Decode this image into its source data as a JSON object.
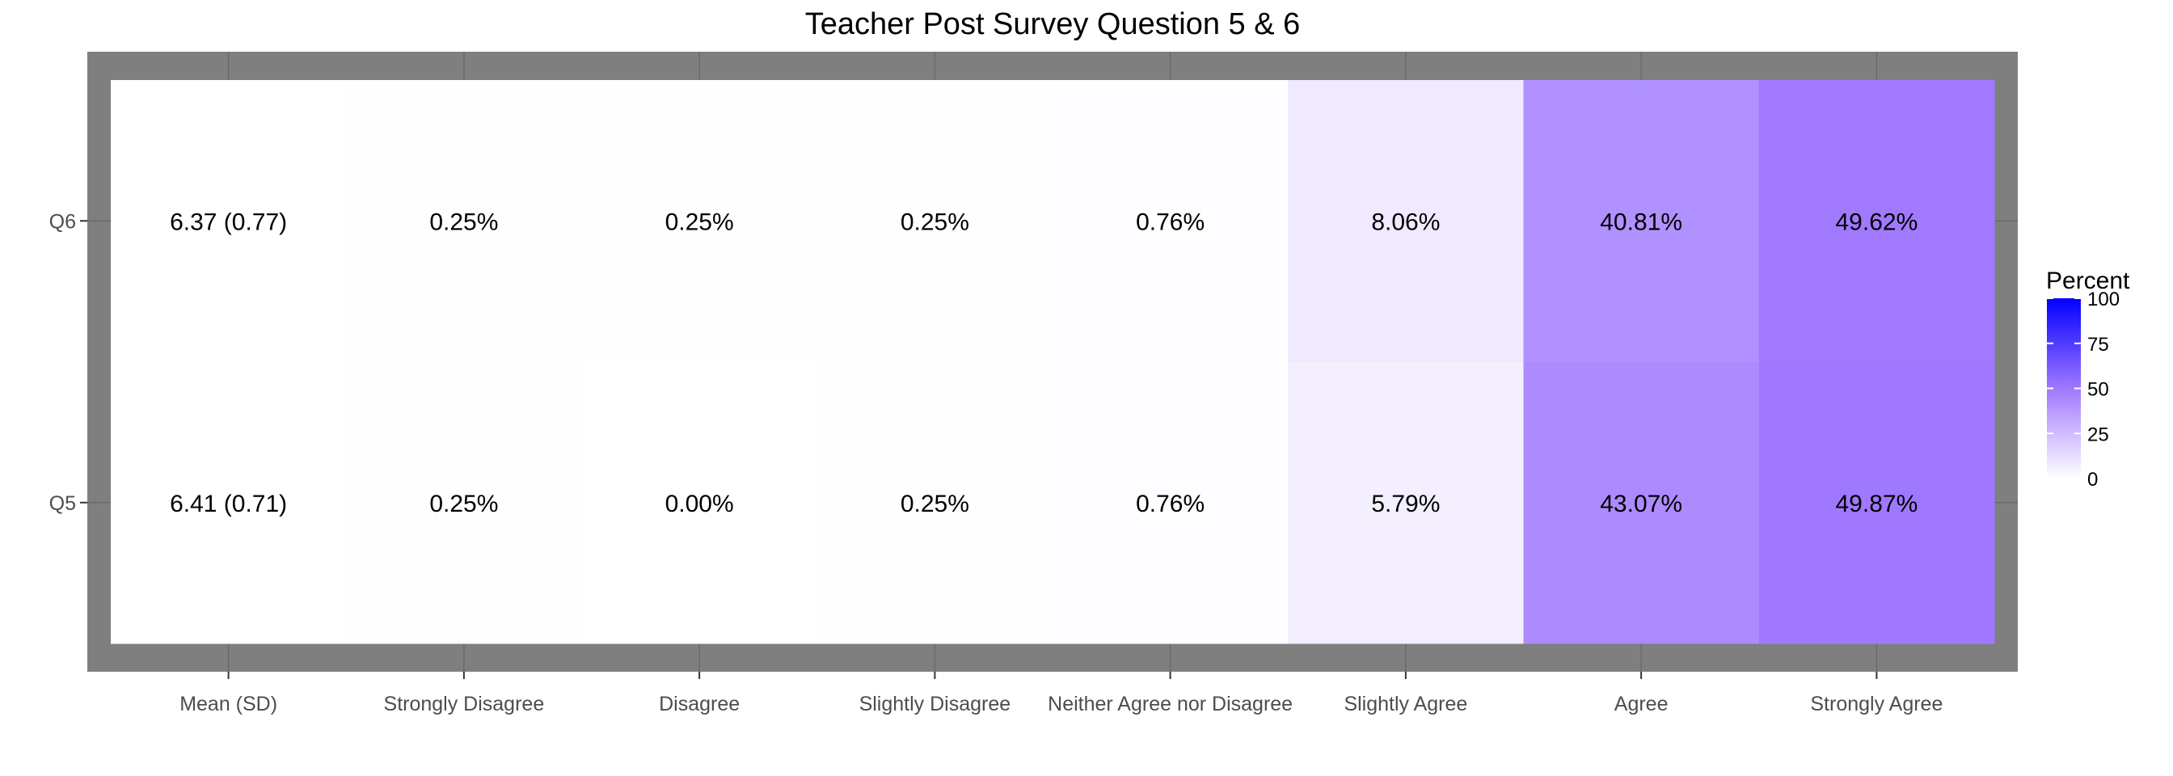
{
  "chart_data": {
    "type": "heatmap",
    "title": "Teacher Post Survey Question 5 & 6",
    "xlabel": "",
    "ylabel": "",
    "columns": [
      "Mean (SD)",
      "Strongly Disagree",
      "Disagree",
      "Slightly Disagree",
      "Neither Agree nor Disagree",
      "Slightly  Agree",
      "Agree",
      "Strongly Agree"
    ],
    "rows": [
      {
        "name": "Q6",
        "mean_sd": "6.37 (0.77)",
        "percents": [
          0.25,
          0.25,
          0.25,
          0.76,
          8.06,
          40.81,
          49.62
        ],
        "labels": [
          "6.37 (0.77)",
          "0.25%",
          "0.25%",
          "0.25%",
          "0.76%",
          "8.06%",
          "40.81%",
          "49.62%"
        ]
      },
      {
        "name": "Q5",
        "mean_sd": "6.41 (0.71)",
        "percents": [
          0.25,
          0.0,
          0.25,
          0.76,
          5.79,
          43.07,
          49.87
        ],
        "labels": [
          "6.41 (0.71)",
          "0.25%",
          "0.00%",
          "0.25%",
          "0.76%",
          "5.79%",
          "43.07%",
          "49.87%"
        ]
      }
    ],
    "legend": {
      "title": "Percent",
      "ticks": [
        "0",
        "25",
        "50",
        "75",
        "100"
      ],
      "range": [
        0,
        100
      ],
      "low_color": "#ffffff",
      "high_color": "#0000ff",
      "placement": "right"
    },
    "panel_border_color": "#7f7f7f",
    "mean_cell_color": "#ffffff"
  }
}
